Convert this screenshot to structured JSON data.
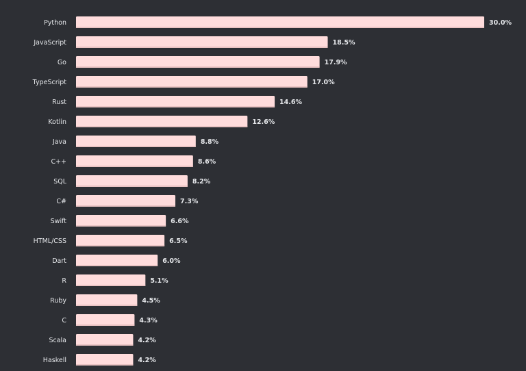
{
  "chart_data": {
    "type": "bar",
    "orientation": "horizontal",
    "categories": [
      "Python",
      "JavaScript",
      "Go",
      "TypeScript",
      "Rust",
      "Kotlin",
      "Java",
      "C++",
      "SQL",
      "C#",
      "Swift",
      "HTML/CSS",
      "Dart",
      "R",
      "Ruby",
      "C",
      "Scala",
      "Haskell"
    ],
    "values": [
      30.0,
      18.5,
      17.9,
      17.0,
      14.6,
      12.6,
      8.8,
      8.6,
      8.2,
      7.3,
      6.6,
      6.5,
      6.0,
      5.1,
      4.5,
      4.3,
      4.2,
      4.2
    ],
    "value_labels": [
      "30.0%",
      "18.5%",
      "17.9%",
      "17.0%",
      "14.6%",
      "12.6%",
      "8.8%",
      "8.6%",
      "8.2%",
      "7.3%",
      "6.6%",
      "6.5%",
      "6.0%",
      "5.1%",
      "4.5%",
      "4.3%",
      "4.2%",
      "4.2%"
    ],
    "title": "",
    "xlabel": "",
    "ylabel": "",
    "xlim": [
      0,
      30
    ],
    "grid": false,
    "colors": {
      "bar": "#ffdcdc",
      "bar_edge": "#ebc4c4",
      "background": "#2d2f34",
      "text": "#e6e8eb"
    }
  }
}
